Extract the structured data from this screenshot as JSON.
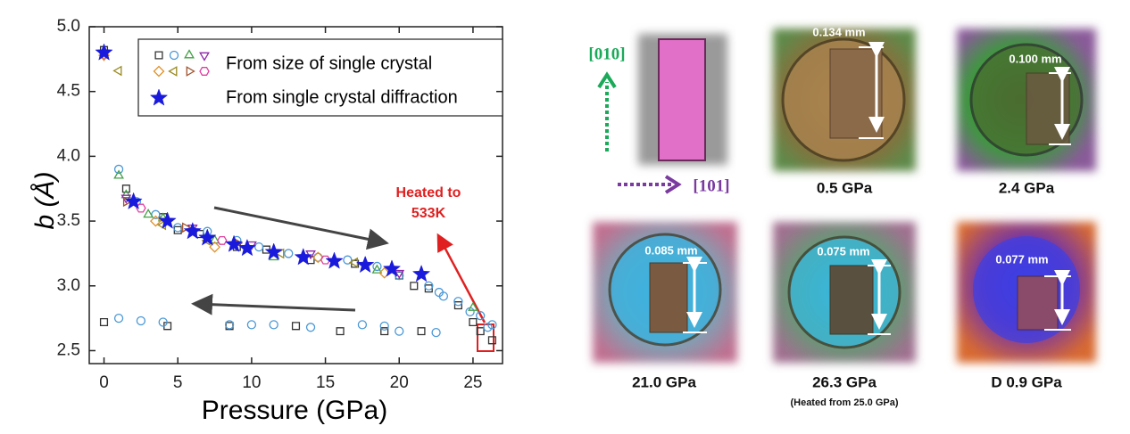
{
  "chart_data": {
    "type": "scatter",
    "xlabel": "Pressure (GPa)",
    "ylabel": "b (Å)",
    "xlim": [
      -1,
      27
    ],
    "ylim": [
      2.4,
      5.0
    ],
    "xticks": [
      0,
      5,
      10,
      15,
      20,
      25
    ],
    "yticks": [
      2.5,
      {
        "value": 3,
        "label": "3.0"
      },
      3.5,
      {
        "value": 4,
        "label": "4.0"
      },
      4.5,
      {
        "value": 5,
        "label": "5.0"
      }
    ],
    "legend": [
      {
        "text": "From size of single crystal"
      },
      {
        "text": "From single crystal diffraction"
      }
    ],
    "annotations": [
      "Heated to",
      "533K"
    ],
    "series": [
      {
        "marker": "square",
        "color": "#333333",
        "legend": 0,
        "x": [
          0,
          1.5,
          4,
          5,
          6.5,
          9,
          11,
          14,
          17,
          20,
          21,
          22,
          24,
          25,
          26.3,
          0,
          4.3,
          8.5,
          13,
          16,
          19,
          21.5,
          25.5
        ],
        "y": [
          4.82,
          3.75,
          3.53,
          3.43,
          3.4,
          3.3,
          3.28,
          3.2,
          3.17,
          3.08,
          3.0,
          2.98,
          2.85,
          2.72,
          2.58,
          2.72,
          2.69,
          2.69,
          2.69,
          2.65,
          2.65,
          2.65,
          2.65
        ]
      },
      {
        "marker": "circle",
        "color": "#4a98d6",
        "legend": 0,
        "x": [
          1,
          2.2,
          3.5,
          5,
          7,
          9,
          10.5,
          12.5,
          14.5,
          16.5,
          18.5,
          20,
          22,
          22.7,
          23,
          24,
          24.8,
          25.5,
          26.3,
          1,
          2.5,
          4,
          8.5,
          10,
          11.5,
          14,
          17.5,
          19,
          20,
          22.5,
          26
        ],
        "y": [
          3.9,
          3.65,
          3.55,
          3.45,
          3.42,
          3.35,
          3.3,
          3.25,
          3.22,
          3.2,
          3.15,
          3.08,
          3.0,
          2.95,
          2.92,
          2.88,
          2.8,
          2.77,
          2.7,
          2.75,
          2.73,
          2.72,
          2.7,
          2.7,
          2.7,
          2.68,
          2.7,
          2.69,
          2.65,
          2.64,
          2.68
        ]
      },
      {
        "marker": "triangle-up",
        "color": "#43a047",
        "legend": 0,
        "x": [
          1,
          1.5,
          3,
          4,
          7.5,
          11.5,
          18.5,
          25
        ],
        "y": [
          3.85,
          3.7,
          3.55,
          3.52,
          3.35,
          3.22,
          3.12,
          2.83
        ]
      },
      {
        "marker": "triangle-down",
        "color": "#8e24aa",
        "legend": 0,
        "x": [
          0,
          1.5,
          6,
          10,
          14,
          20
        ],
        "y": [
          4.78,
          3.68,
          3.45,
          3.32,
          3.25,
          3.1
        ]
      },
      {
        "marker": "diamond",
        "color": "#e0902a",
        "legend": 0,
        "x": [
          0,
          3.5,
          7.5,
          14.5,
          19
        ],
        "y": [
          4.78,
          3.5,
          3.3,
          3.22,
          3.1
        ]
      },
      {
        "marker": "triangle-left",
        "color": "#9a8a20",
        "legend": 0,
        "x": [
          1,
          4,
          7,
          12,
          17
        ],
        "y": [
          4.66,
          3.47,
          3.35,
          3.25,
          3.18
        ]
      },
      {
        "marker": "triangle-right",
        "color": "#a0522d",
        "legend": 0,
        "x": [
          1.5,
          5.5,
          9
        ],
        "y": [
          3.65,
          3.45,
          3.33
        ]
      },
      {
        "marker": "hexagon",
        "color": "#e040a0",
        "legend": 0,
        "x": [
          2.5,
          8,
          15
        ],
        "y": [
          3.6,
          3.35,
          3.2
        ]
      },
      {
        "marker": "star",
        "color": "#1a1adc",
        "legend": 1,
        "x": [
          0,
          2,
          4.3,
          6,
          7,
          8.8,
          9.7,
          11.5,
          13.5,
          15.6,
          17.7,
          19.5,
          21.5
        ],
        "y": [
          4.8,
          3.65,
          3.5,
          3.42,
          3.37,
          3.32,
          3.29,
          3.26,
          3.22,
          3.19,
          3.16,
          3.13,
          3.09
        ]
      }
    ]
  },
  "panels": {
    "axis_labels": [
      "[010]",
      "[101]"
    ],
    "items": [
      {
        "width_label": "0.134 mm",
        "pressure": "0.5 GPa"
      },
      {
        "width_label": "0.100 mm",
        "pressure": "2.4 GPa"
      },
      {
        "width_label": "0.085 mm",
        "pressure": "21.0 GPa"
      },
      {
        "width_label": "0.075 mm",
        "pressure": "26.3 GPa",
        "note": "(Heated from 25.0 GPa)"
      },
      {
        "width_label": "0.077 mm",
        "pressure": "D 0.9 GPa"
      }
    ]
  }
}
